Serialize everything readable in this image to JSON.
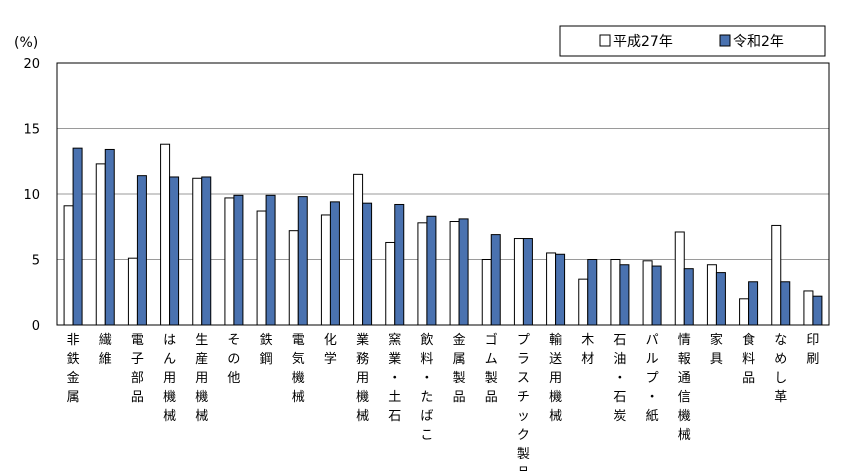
{
  "chart_data": {
    "type": "bar",
    "title": "",
    "xlabel": "",
    "ylabel": "(%)",
    "ylim": [
      0,
      20
    ],
    "yticks": [
      0,
      5,
      10,
      15,
      20
    ],
    "grid": true,
    "legend_position": "top-right",
    "categories": [
      "非鉄金属",
      "繊維",
      "電子部品",
      "はん用機械",
      "生産用機械",
      "その他",
      "鉄鋼",
      "電気機械",
      "化学",
      "業務用機械",
      "窯業・土石",
      "飲料・たばこ",
      "金属製品",
      "ゴム製品",
      "プラスチック製品",
      "輸送用機械",
      "木材",
      "石油・石炭",
      "パルプ・紙",
      "情報通信機械",
      "家具",
      "食料品",
      "なめし革",
      "印刷"
    ],
    "series": [
      {
        "name": "平成27年",
        "color": "#ffffff",
        "values": [
          9.1,
          12.3,
          5.1,
          13.8,
          11.2,
          9.7,
          8.7,
          7.2,
          8.4,
          11.5,
          6.3,
          7.8,
          7.9,
          5.0,
          6.6,
          5.5,
          3.5,
          5.0,
          4.9,
          7.1,
          4.6,
          2.0,
          7.6,
          2.6
        ]
      },
      {
        "name": "令和2年",
        "color": "#4a72b0",
        "values": [
          13.5,
          13.4,
          11.4,
          11.3,
          11.3,
          9.9,
          9.9,
          9.8,
          9.4,
          9.3,
          9.2,
          8.3,
          8.1,
          6.9,
          6.6,
          5.4,
          5.0,
          4.6,
          4.5,
          4.3,
          4.0,
          3.3,
          3.3,
          2.2
        ]
      }
    ]
  }
}
